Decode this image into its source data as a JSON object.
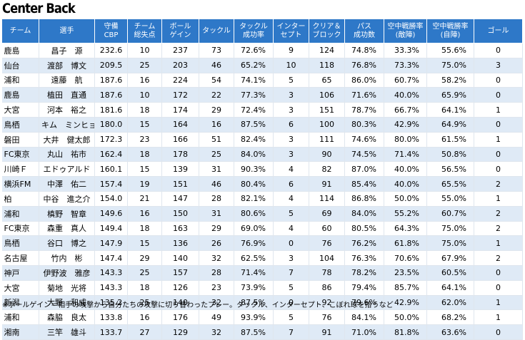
{
  "chart_data": {
    "type": "table",
    "title": "Center Back",
    "columns": [
      "チーム",
      "選手",
      "守備\nCBP",
      "チーム\n総失点",
      "ボール\nゲイン",
      "タックル",
      "タックル\n成功率",
      "インター\nセプト",
      "クリア＆\nブロック",
      "パス\n成功数",
      "空中戦勝率\n(敵陣)",
      "空中戦勝率\n(自陣)",
      "ゴール"
    ],
    "rows": [
      [
        "鹿島",
        "昌子　源",
        "232.6",
        "10",
        "237",
        "73",
        "72.6%",
        "9",
        "124",
        "74.8%",
        "33.3%",
        "55.6%",
        "0"
      ],
      [
        "仙台",
        "渡部　博文",
        "209.5",
        "25",
        "203",
        "46",
        "65.2%",
        "10",
        "118",
        "76.8%",
        "73.3%",
        "75.0%",
        "3"
      ],
      [
        "浦和",
        "遠藤　航",
        "187.6",
        "16",
        "224",
        "54",
        "74.1%",
        "5",
        "65",
        "86.0%",
        "60.7%",
        "58.2%",
        "0"
      ],
      [
        "鹿島",
        "植田　直通",
        "187.6",
        "10",
        "172",
        "22",
        "77.3%",
        "3",
        "106",
        "71.6%",
        "40.0%",
        "65.9%",
        "0"
      ],
      [
        "大宮",
        "河本　裕之",
        "181.6",
        "18",
        "174",
        "29",
        "72.4%",
        "3",
        "151",
        "78.7%",
        "66.7%",
        "64.1%",
        "1"
      ],
      [
        "鳥栖",
        "キム　ミンヒョク",
        "180.0",
        "15",
        "164",
        "16",
        "87.5%",
        "6",
        "100",
        "80.3%",
        "42.9%",
        "64.9%",
        "0"
      ],
      [
        "磐田",
        "大井　健太郎",
        "172.3",
        "23",
        "166",
        "51",
        "82.4%",
        "3",
        "111",
        "74.6%",
        "80.0%",
        "61.5%",
        "1"
      ],
      [
        "FC東京",
        "丸山　祐市",
        "162.4",
        "18",
        "178",
        "25",
        "84.0%",
        "3",
        "90",
        "74.5%",
        "71.4%",
        "50.8%",
        "0"
      ],
      [
        "川崎Ｆ",
        "エドゥアルド",
        "160.1",
        "15",
        "139",
        "31",
        "90.3%",
        "4",
        "82",
        "87.0%",
        "40.0%",
        "56.5%",
        "0"
      ],
      [
        "横浜FM",
        "中澤　佑二",
        "157.4",
        "19",
        "151",
        "46",
        "80.4%",
        "6",
        "91",
        "85.4%",
        "40.0%",
        "65.5%",
        "2"
      ],
      [
        "柏",
        "中谷　進之介",
        "154.0",
        "21",
        "147",
        "28",
        "82.1%",
        "4",
        "114",
        "86.8%",
        "50.0%",
        "55.0%",
        "1"
      ],
      [
        "浦和",
        "槙野　智章",
        "149.6",
        "16",
        "150",
        "31",
        "80.6%",
        "5",
        "69",
        "84.0%",
        "55.2%",
        "60.7%",
        "2"
      ],
      [
        "FC東京",
        "森重　真人",
        "149.4",
        "18",
        "163",
        "29",
        "69.0%",
        "4",
        "60",
        "80.5%",
        "64.3%",
        "75.0%",
        "2"
      ],
      [
        "鳥栖",
        "谷口　博之",
        "147.9",
        "15",
        "136",
        "26",
        "76.9%",
        "0",
        "76",
        "76.2%",
        "61.8%",
        "75.0%",
        "1"
      ],
      [
        "名古屋",
        "竹内　彬",
        "147.4",
        "29",
        "140",
        "32",
        "62.5%",
        "3",
        "104",
        "76.3%",
        "70.6%",
        "67.9%",
        "2"
      ],
      [
        "神戸",
        "伊野波　雅彦",
        "143.3",
        "25",
        "157",
        "28",
        "71.4%",
        "7",
        "78",
        "78.2%",
        "23.5%",
        "60.5%",
        "0"
      ],
      [
        "大宮",
        "菊地　光将",
        "143.3",
        "18",
        "126",
        "23",
        "73.9%",
        "5",
        "86",
        "79.4%",
        "85.7%",
        "64.1%",
        "0"
      ],
      [
        "新潟",
        "大野　和成",
        "135.2",
        "25",
        "140",
        "32",
        "87.5%",
        "0",
        "92",
        "79.6%",
        "42.9%",
        "62.0%",
        "1"
      ],
      [
        "浦和",
        "森脇　良太",
        "133.8",
        "16",
        "176",
        "49",
        "93.9%",
        "5",
        "76",
        "84.1%",
        "50.0%",
        "68.2%",
        "1"
      ],
      [
        "湘南",
        "三竿　雄斗",
        "133.7",
        "27",
        "129",
        "32",
        "87.5%",
        "7",
        "91",
        "71.0%",
        "81.8%",
        "63.6%",
        "0"
      ]
    ],
    "footnote": "※ボールゲイン＝相手の攻撃から自分たちの攻撃に切り替わったプレー。タックル、インターセプト、こぼれ球を拾うなど"
  }
}
